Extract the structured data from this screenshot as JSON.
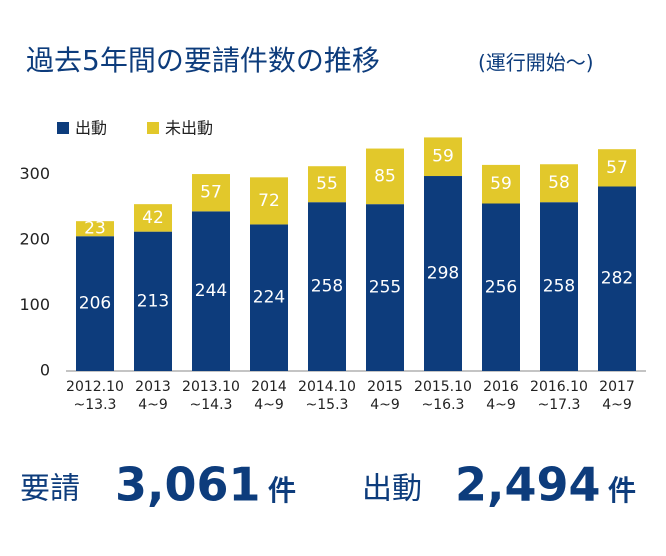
{
  "chart_data": {
    "type": "stacked_bar",
    "title": "過去5年間の要請件数の推移",
    "subtitle": "(運行開始〜)",
    "categories": [
      [
        "2012.10",
        "~13.3"
      ],
      [
        "2013",
        "4~9"
      ],
      [
        "2013.10",
        "~14.3"
      ],
      [
        "2014",
        "4~9"
      ],
      [
        "2014.10",
        "~15.3"
      ],
      [
        "2015",
        "4~9"
      ],
      [
        "2015.10",
        "~16.3"
      ],
      [
        "2016",
        "4~9"
      ],
      [
        "2016.10",
        "~17.3"
      ],
      [
        "2017",
        "4~9"
      ]
    ],
    "series": [
      {
        "name": "出動",
        "color": "#0d3c7c",
        "values": [
          206,
          213,
          244,
          224,
          258,
          255,
          298,
          256,
          258,
          282
        ]
      },
      {
        "name": "未出動",
        "color": "#e2c82b",
        "values": [
          23,
          42,
          57,
          72,
          55,
          85,
          59,
          59,
          58,
          57
        ]
      }
    ],
    "ylim": [
      0,
      350
    ],
    "yticks": [
      0,
      100,
      200,
      300
    ],
    "grid": false,
    "legend": "top-left"
  },
  "summary": [
    {
      "label": "要請",
      "value": "3,061",
      "unit": "件"
    },
    {
      "label": "出動",
      "value": "2,494",
      "unit": "件"
    }
  ]
}
